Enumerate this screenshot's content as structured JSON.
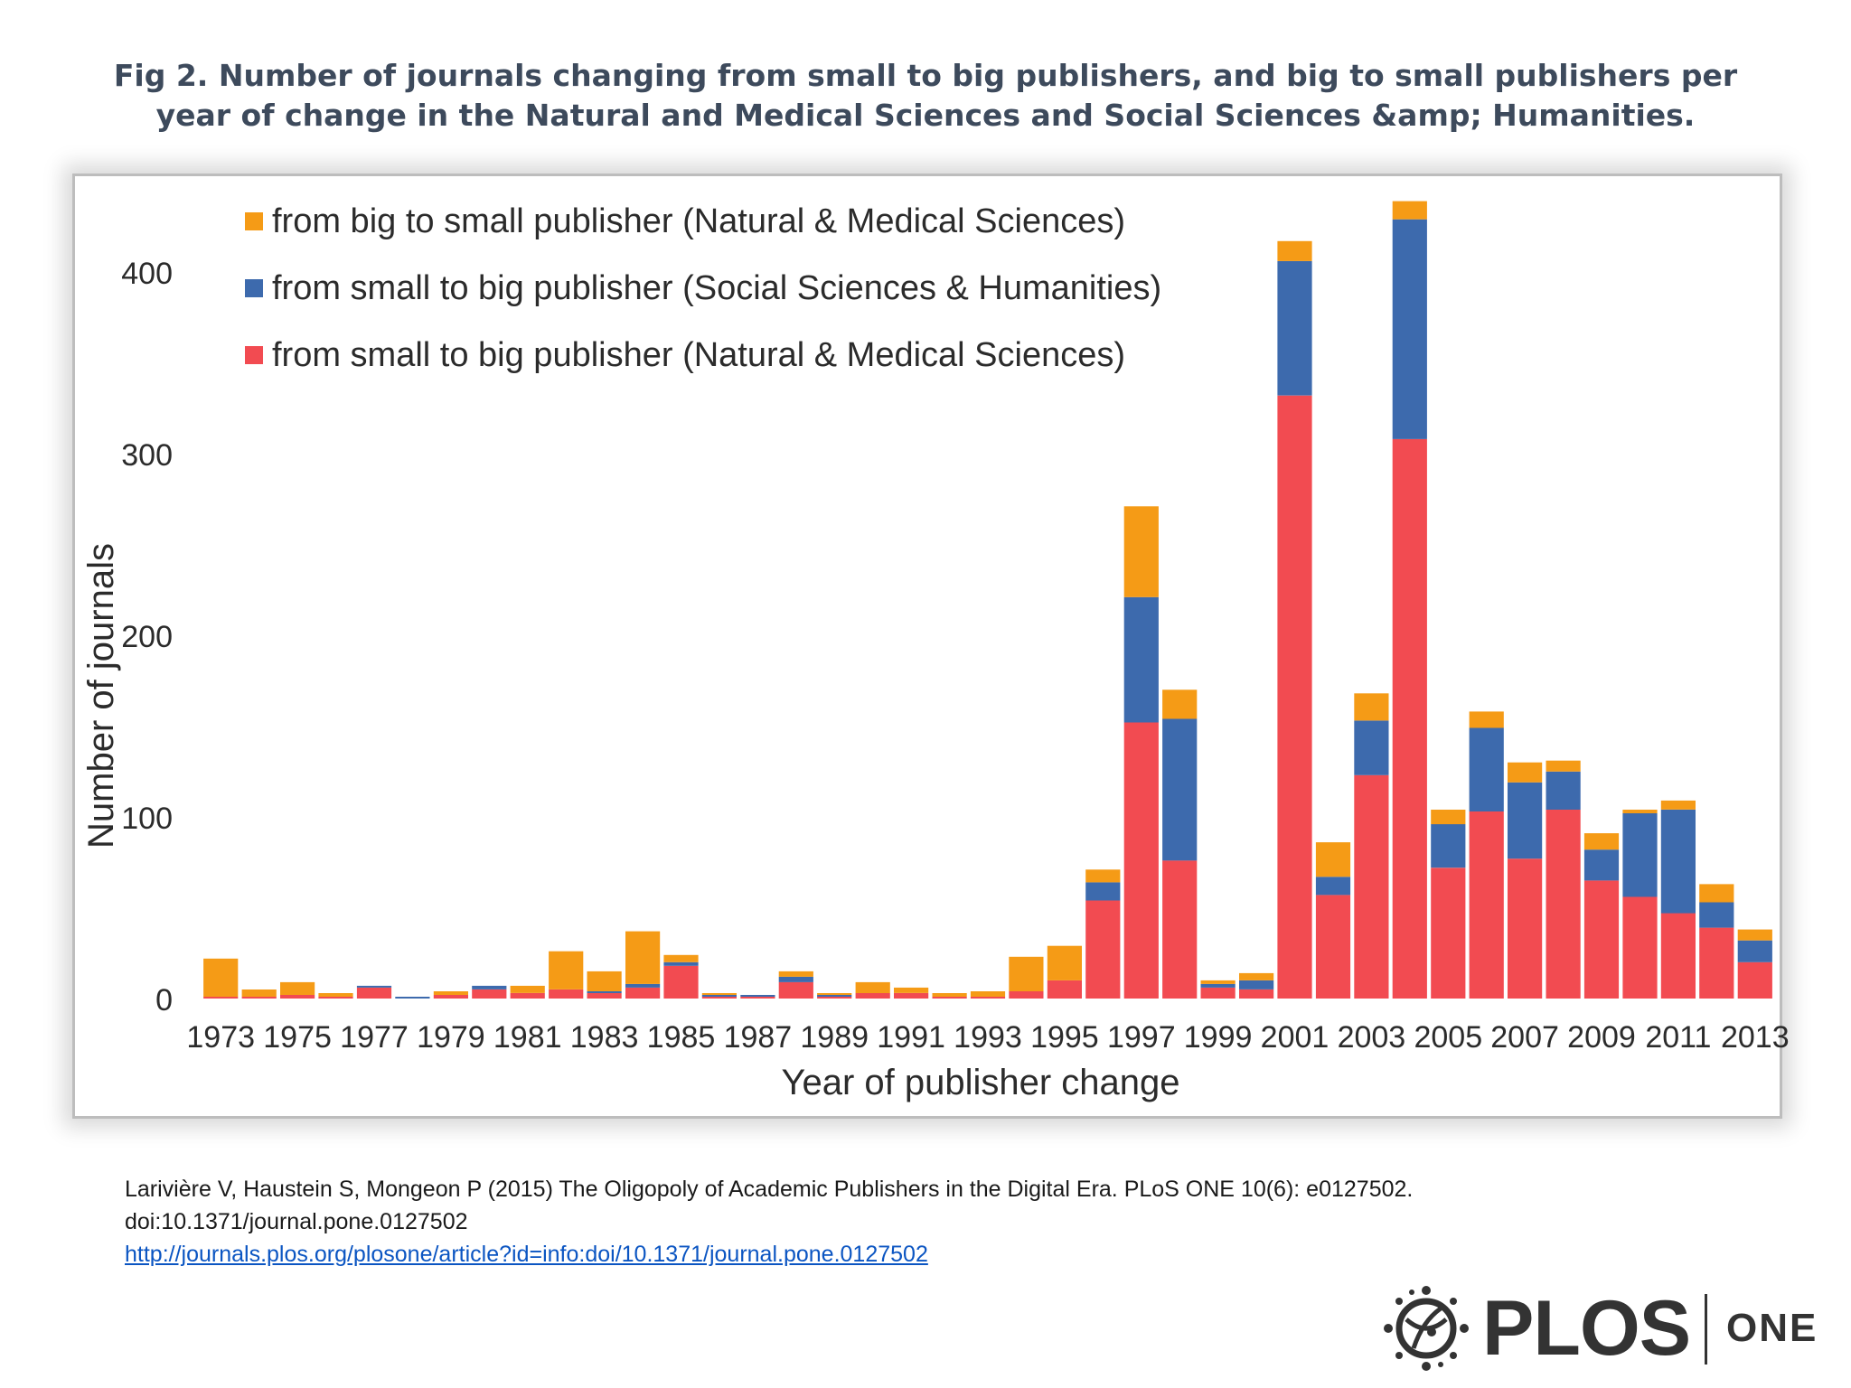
{
  "figure": {
    "title": "Fig 2. Number of journals changing from small to big publishers, and big to small publishers per year of change in the Natural and Medical Sciences and Social Sciences &amp; Humanities."
  },
  "colors": {
    "nms_small_to_big": "#f24b51",
    "ssh_small_to_big": "#3d6aad",
    "nms_big_to_small": "#f59b16"
  },
  "chart_data": {
    "type": "bar",
    "stacked": true,
    "xlabel": "Year of publisher change",
    "ylabel": "Number of journals",
    "ylim": [
      0,
      450
    ],
    "yticks": [
      0,
      100,
      200,
      300,
      400
    ],
    "grid": false,
    "legend_position": "top-left",
    "legend": [
      {
        "label": "from big to small publisher (Natural & Medical Sciences)",
        "color": "#f59b16"
      },
      {
        "label": "from small to big publisher (Social Sciences & Humanities)",
        "color": "#3d6aad"
      },
      {
        "label": "from small to big publisher (Natural & Medical Sciences)",
        "color": "#f24b51"
      }
    ],
    "categories": [
      "1973",
      "1974",
      "1975",
      "1976",
      "1977",
      "1978",
      "1979",
      "1980",
      "1981",
      "1982",
      "1983",
      "1984",
      "1985",
      "1986",
      "1987",
      "1988",
      "1989",
      "1990",
      "1991",
      "1992",
      "1993",
      "1994",
      "1995",
      "1996",
      "1997",
      "1998",
      "1999",
      "2000",
      "2001",
      "2002",
      "2003",
      "2004",
      "2005",
      "2006",
      "2007",
      "2008",
      "2009",
      "2010",
      "2011",
      "2012",
      "2013"
    ],
    "xtick_labels": [
      "1973",
      "1975",
      "1977",
      "1979",
      "1981",
      "1983",
      "1985",
      "1987",
      "1989",
      "1991",
      "1993",
      "1995",
      "1997",
      "1999",
      "2001",
      "2003",
      "2005",
      "2007",
      "2009",
      "2011",
      "2013"
    ],
    "series": [
      {
        "name": "from small to big publisher (Natural & Medical Sciences)",
        "color": "#f24b51",
        "values": [
          1,
          1,
          2,
          1,
          6,
          0,
          2,
          5,
          3,
          5,
          3,
          6,
          18,
          1,
          1,
          9,
          1,
          3,
          3,
          1,
          1,
          4,
          10,
          54,
          152,
          76,
          6,
          5,
          332,
          57,
          123,
          308,
          72,
          103,
          77,
          104,
          65,
          56,
          47,
          39,
          20
        ]
      },
      {
        "name": "from small to big publisher (Social Sciences & Humanities)",
        "color": "#3d6aad",
        "values": [
          0,
          0,
          0,
          0,
          1,
          1,
          0,
          2,
          0,
          0,
          1,
          2,
          2,
          1,
          1,
          3,
          1,
          0,
          0,
          0,
          0,
          0,
          0,
          10,
          69,
          78,
          2,
          5,
          74,
          10,
          30,
          121,
          24,
          46,
          42,
          21,
          17,
          46,
          57,
          14,
          12
        ]
      },
      {
        "name": "from big to small publisher (Natural & Medical Sciences)",
        "color": "#f59b16",
        "values": [
          21,
          4,
          7,
          2,
          0,
          0,
          2,
          0,
          4,
          21,
          11,
          29,
          4,
          1,
          0,
          3,
          1,
          6,
          3,
          2,
          3,
          19,
          19,
          7,
          50,
          16,
          2,
          4,
          11,
          19,
          15,
          10,
          8,
          9,
          11,
          6,
          9,
          2,
          5,
          10,
          6
        ]
      }
    ]
  },
  "citation": {
    "text": "Larivière V, Haustein S, Mongeon P (2015) The Oligopoly of Academic Publishers in the Digital Era. PLoS ONE 10(6): e0127502.",
    "doi": "doi:10.1371/journal.pone.0127502",
    "url": "http://journals.plos.org/plosone/article?id=info:doi/10.1371/journal.pone.0127502"
  },
  "logo": {
    "brand": "PLOS",
    "sub": "ONE"
  }
}
